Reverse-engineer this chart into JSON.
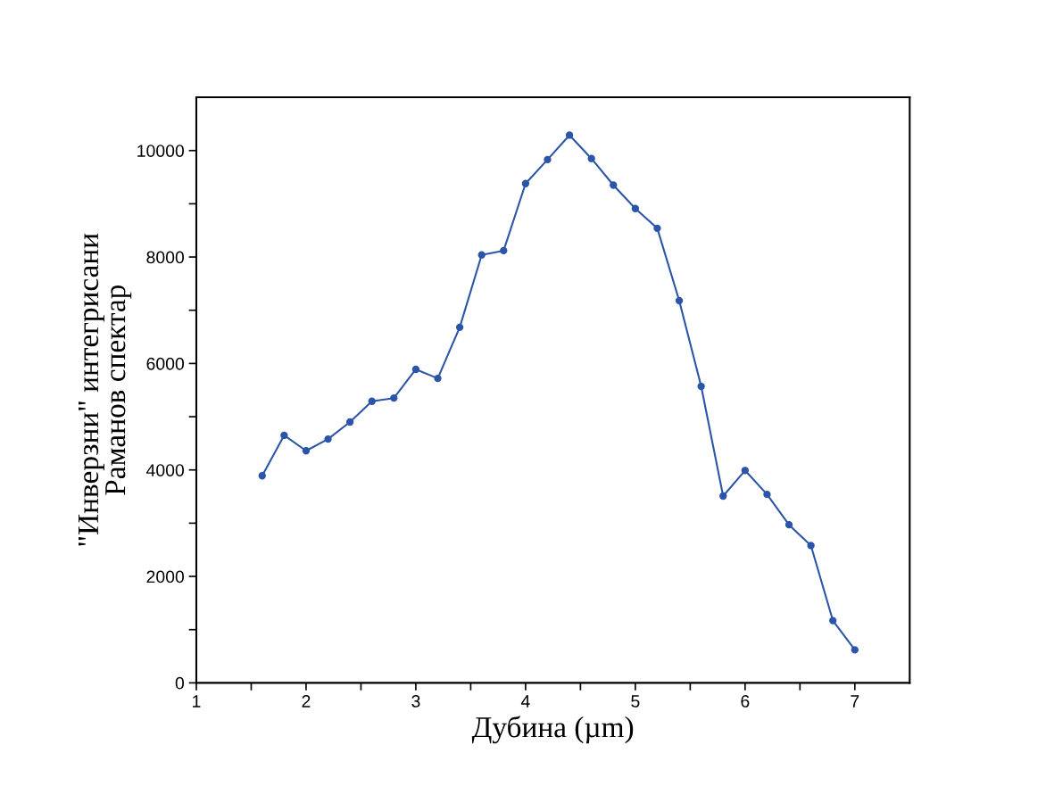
{
  "chart_data": {
    "type": "line",
    "xlabel": "Дубина (µm)",
    "ylabel": "\"Инверзни\" интегрисани\nРаманов спектар",
    "x": [
      1.6,
      1.8,
      2.0,
      2.2,
      2.4,
      2.6,
      2.8,
      3.0,
      3.2,
      3.4,
      3.6,
      3.8,
      4.0,
      4.2,
      4.4,
      4.6,
      4.8,
      5.0,
      5.2,
      5.4,
      5.6,
      5.8,
      6.0,
      6.2,
      6.4,
      6.6,
      6.8,
      7.0
    ],
    "series": [
      {
        "color": "#2b55a8",
        "values": [
          3890,
          4650,
          4360,
          4580,
          4900,
          5290,
          5350,
          5890,
          5720,
          6680,
          8040,
          8120,
          9380,
          9830,
          10290,
          9850,
          9350,
          8910,
          8540,
          7180,
          5570,
          3510,
          3990,
          3540,
          2970,
          2580,
          1170,
          620
        ]
      }
    ],
    "xlim": [
      1,
      7.5
    ],
    "ylim": [
      0,
      11000
    ],
    "xticks": [
      1,
      {
        "value": 1.5,
        "label": null
      },
      2,
      {
        "value": 2.5,
        "label": null
      },
      3,
      {
        "value": 3.5,
        "label": null
      },
      4,
      {
        "value": 4.5,
        "label": null
      },
      5,
      {
        "value": 5.5,
        "label": null
      },
      6,
      {
        "value": 6.5,
        "label": null
      },
      7
    ],
    "yticks": [
      0,
      {
        "value": 1000,
        "label": null
      },
      2000,
      {
        "value": 3000,
        "label": null
      },
      4000,
      {
        "value": 5000,
        "label": null
      },
      6000,
      {
        "value": 7000,
        "label": null
      },
      8000,
      {
        "value": 9000,
        "label": null
      },
      10000
    ],
    "marker": "circle",
    "line_style": "solid",
    "grid": false,
    "legend": false
  }
}
